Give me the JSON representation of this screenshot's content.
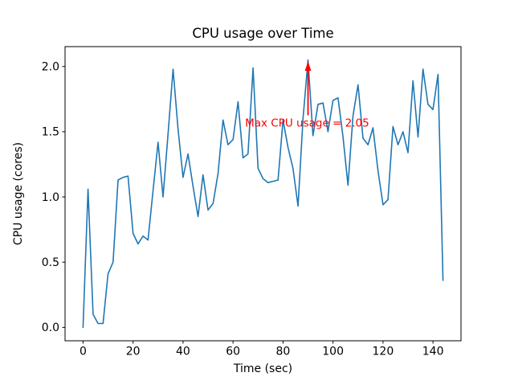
{
  "chart_data": {
    "type": "line",
    "title": "CPU usage over Time",
    "xlabel": "Time (sec)",
    "ylabel": "CPU usage (cores)",
    "series_name": "CPU usage",
    "line_color": "#1f77b4",
    "background_color": "#ffffff",
    "grid": false,
    "legend_position": "none",
    "xlim": [
      -7.2,
      151.2
    ],
    "ylim": [
      -0.1025,
      2.1525
    ],
    "xticks": [
      0,
      20,
      40,
      60,
      80,
      100,
      120,
      140
    ],
    "yticks": [
      0.0,
      0.5,
      1.0,
      1.5,
      2.0
    ],
    "x": [
      0,
      2,
      4,
      6,
      8,
      10,
      12,
      14,
      16,
      18,
      20,
      22,
      24,
      26,
      28,
      30,
      32,
      34,
      36,
      38,
      40,
      42,
      44,
      46,
      48,
      50,
      52,
      54,
      56,
      58,
      60,
      62,
      64,
      66,
      68,
      70,
      72,
      74,
      76,
      78,
      80,
      82,
      84,
      86,
      88,
      90,
      92,
      94,
      96,
      98,
      100,
      102,
      104,
      106,
      108,
      110,
      112,
      114,
      116,
      118,
      120,
      122,
      124,
      126,
      128,
      130,
      132,
      134,
      136,
      138,
      140,
      142,
      144
    ],
    "series": [
      {
        "name": "CPU usage",
        "values": [
          0.0,
          1.06,
          0.1,
          0.03,
          0.03,
          0.41,
          0.5,
          1.13,
          1.15,
          1.16,
          0.72,
          0.64,
          0.7,
          0.67,
          1.05,
          1.42,
          1.0,
          1.48,
          1.98,
          1.52,
          1.15,
          1.33,
          1.08,
          0.85,
          1.17,
          0.9,
          0.95,
          1.18,
          1.59,
          1.4,
          1.44,
          1.73,
          1.3,
          1.33,
          1.99,
          1.22,
          1.14,
          1.11,
          1.12,
          1.13,
          1.59,
          1.38,
          1.22,
          0.93,
          1.6,
          2.05,
          1.47,
          1.71,
          1.72,
          1.5,
          1.74,
          1.76,
          1.46,
          1.09,
          1.62,
          1.86,
          1.45,
          1.4,
          1.53,
          1.2,
          0.94,
          0.98,
          1.54,
          1.4,
          1.5,
          1.34,
          1.89,
          1.46,
          1.98,
          1.71,
          1.67,
          1.94,
          0.36
        ]
      }
    ],
    "annotation": {
      "text": "Max CPU usage = 2.05",
      "color": "#ff0000",
      "max_value": 2.05,
      "arrow_tip_xy": [
        90,
        2.05
      ],
      "text_xy": [
        64.8,
        1.54
      ]
    }
  }
}
